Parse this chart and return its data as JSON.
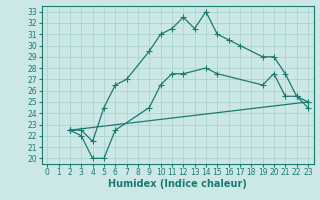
{
  "xlabel": "Humidex (Indice chaleur)",
  "bg_color": "#cce8e6",
  "grid_color": "#aad4d0",
  "line_color": "#1a7a72",
  "xlim": [
    -0.5,
    23.5
  ],
  "ylim": [
    19.5,
    33.5
  ],
  "xticks": [
    0,
    1,
    2,
    3,
    4,
    5,
    6,
    7,
    8,
    9,
    10,
    11,
    12,
    13,
    14,
    15,
    16,
    17,
    18,
    19,
    20,
    21,
    22,
    23
  ],
  "yticks": [
    20,
    21,
    22,
    23,
    24,
    25,
    26,
    27,
    28,
    29,
    30,
    31,
    32,
    33
  ],
  "line1_x": [
    2,
    3,
    4,
    5,
    6,
    7,
    9,
    10,
    11,
    12,
    13,
    14,
    15,
    16,
    17,
    19,
    20,
    21,
    22,
    23
  ],
  "line1_y": [
    22.5,
    22.5,
    21.5,
    24.5,
    26.5,
    27.0,
    29.5,
    31.0,
    31.5,
    32.5,
    31.5,
    33.0,
    31.0,
    30.5,
    30.0,
    29.0,
    29.0,
    27.5,
    25.5,
    24.5
  ],
  "line2_x": [
    2,
    3,
    4,
    5,
    6,
    9,
    10,
    11,
    12,
    14,
    15,
    19,
    20,
    21,
    22,
    23
  ],
  "line2_y": [
    22.5,
    22.0,
    20.0,
    20.0,
    22.5,
    24.5,
    26.5,
    27.5,
    27.5,
    28.0,
    27.5,
    26.5,
    27.5,
    25.5,
    25.5,
    25.0
  ],
  "line3_x": [
    2,
    23
  ],
  "line3_y": [
    22.5,
    25.0
  ],
  "xlabel_fontsize": 7,
  "tick_fontsize": 5.5
}
